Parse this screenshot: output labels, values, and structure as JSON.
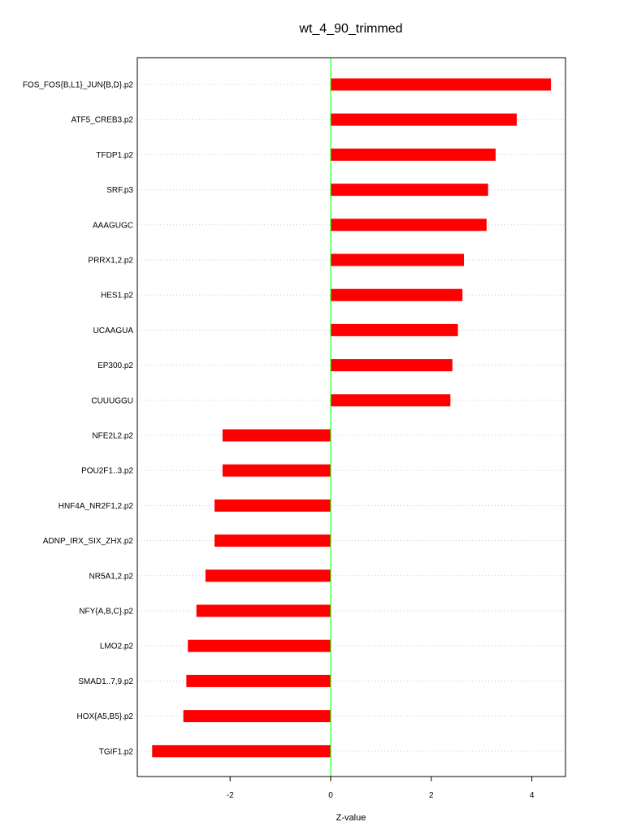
{
  "chart_data": {
    "type": "bar",
    "orientation": "horizontal",
    "title": "wt_4_90_trimmed",
    "xlabel": "Z-value",
    "ylabel": "",
    "xlim": [
      -3.85,
      4.7
    ],
    "xticks": [
      -2,
      0,
      2,
      4
    ],
    "grid": "dotted horizontal",
    "categories": [
      "FOS_FOS{B,L1}_JUN{B,D}.p2",
      "ATF5_CREB3.p2",
      "TFDP1.p2",
      "SRF.p3",
      "AAAGUGC",
      "PRRX1,2.p2",
      "HES1.p2",
      "UCAAGUA",
      "EP300.p2",
      "CUUUGGU",
      "NFE2L2.p2",
      "POU2F1..3.p2",
      "HNF4A_NR2F1,2.p2",
      "ADNP_IRX_SIX_ZHX.p2",
      "NR5A1,2.p2",
      "NFY{A,B,C}.p2",
      "LMO2.p2",
      "SMAD1..7,9.p2",
      "HOX{A5,B5}.p2",
      "TGIF1.p2"
    ],
    "values": [
      4.38,
      3.7,
      3.28,
      3.13,
      3.1,
      2.65,
      2.62,
      2.53,
      2.42,
      2.38,
      -2.15,
      -2.15,
      -2.31,
      -2.31,
      -2.49,
      -2.67,
      -2.84,
      -2.87,
      -2.93,
      -3.55
    ],
    "colors": {
      "bar": "#ff0000",
      "zero_line": "#00ff00",
      "grid": "#c8c8c8"
    }
  }
}
